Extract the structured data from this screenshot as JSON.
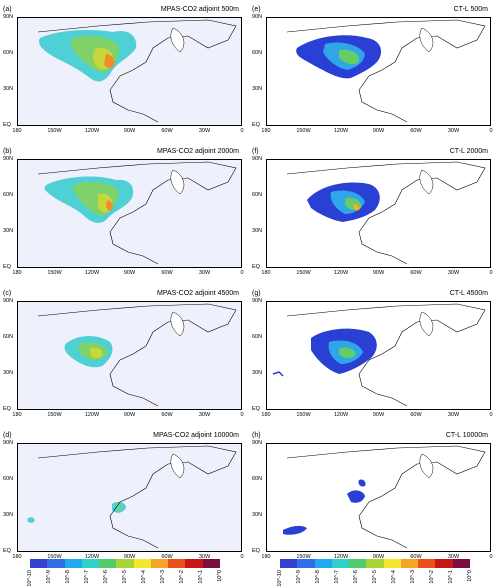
{
  "panels": [
    {
      "label": "(a)",
      "title": "MPAS-CO2 adjoint 500m"
    },
    {
      "label": "(b)",
      "title": "MPAS-CO2 adjoint 2000m"
    },
    {
      "label": "(c)",
      "title": "MPAS-CO2 adjoint 4500m"
    },
    {
      "label": "(d)",
      "title": "MPAS-CO2 adjoint 10000m"
    },
    {
      "label": "(e)",
      "title": "CT-L 500m"
    },
    {
      "label": "(f)",
      "title": "CT-L 2000m"
    },
    {
      "label": "(g)",
      "title": "CT-L 4500m"
    },
    {
      "label": "(h)",
      "title": "CT-L 10000m"
    }
  ],
  "lat_labels": [
    "90N",
    "60N",
    "30N",
    "EQ"
  ],
  "lon_labels": [
    "180",
    "150W",
    "120W",
    "90W",
    "60W",
    "30W",
    "0"
  ],
  "colorbar": {
    "colors": [
      "#3440d0",
      "#2f6fe6",
      "#22a8f0",
      "#2fd0c8",
      "#52cc6a",
      "#a8d438",
      "#f4e82c",
      "#f6a428",
      "#e8521a",
      "#c61616",
      "#7a0e3e"
    ],
    "ticks": [
      "10^-10",
      "10^-9",
      "10^-8",
      "10^-7",
      "10^-6",
      "10^-5",
      "10^-4",
      "10^-3",
      "10^-2",
      "10^-1",
      "10^0"
    ]
  }
}
